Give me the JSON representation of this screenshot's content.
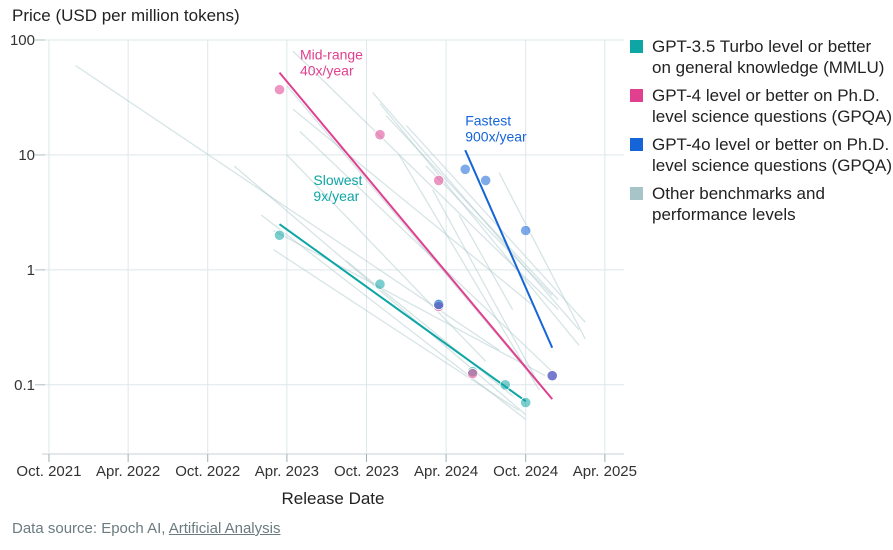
{
  "chart_data": {
    "type": "scatter",
    "title": "",
    "ylabel": "Price (USD per million tokens)",
    "xlabel": "Release Date",
    "y_scale": "log",
    "ylim": [
      0.025,
      100
    ],
    "xlim": [
      "2021-09-15",
      "2025-05-15"
    ],
    "grid": true,
    "y_ticks": [
      {
        "value": 100,
        "label": "100"
      },
      {
        "value": 10,
        "label": "10"
      },
      {
        "value": 1,
        "label": "1"
      },
      {
        "value": 0.1,
        "label": "0.1"
      }
    ],
    "x_ticks": [
      {
        "date": "2021-10-01",
        "label": "Oct. 2021"
      },
      {
        "date": "2022-04-01",
        "label": "Apr. 2022"
      },
      {
        "date": "2022-10-01",
        "label": "Oct. 2022"
      },
      {
        "date": "2023-04-01",
        "label": "Apr. 2023"
      },
      {
        "date": "2023-10-01",
        "label": "Oct. 2023"
      },
      {
        "date": "2024-04-01",
        "label": "Apr. 2024"
      },
      {
        "date": "2024-10-01",
        "label": "Oct. 2024"
      },
      {
        "date": "2025-04-01",
        "label": "Apr. 2025"
      }
    ],
    "legend_position": "right",
    "series": [
      {
        "name": "GPT-3.5 Turbo level or better on general knowledge (MMLU)",
        "color": "#0ea5a5",
        "points": [
          {
            "x": "2023-03-15",
            "y": 2.0
          },
          {
            "x": "2023-11-01",
            "y": 0.75
          },
          {
            "x": "2024-03-15",
            "y": 0.5
          },
          {
            "x": "2024-06-01",
            "y": 0.13
          },
          {
            "x": "2024-08-15",
            "y": 0.1
          },
          {
            "x": "2024-10-01",
            "y": 0.07
          }
        ],
        "trend": {
          "x": [
            "2023-03-15",
            "2024-10-01"
          ],
          "y": [
            2.5,
            0.072
          ]
        }
      },
      {
        "name": "GPT-4 level or better on Ph.D. level science questions (GPQA)",
        "color": "#e0408f",
        "points": [
          {
            "x": "2023-03-15",
            "y": 37
          },
          {
            "x": "2023-11-01",
            "y": 15
          },
          {
            "x": "2024-03-15",
            "y": 6
          },
          {
            "x": "2024-03-15",
            "y": 0.48
          },
          {
            "x": "2024-06-01",
            "y": 0.125
          },
          {
            "x": "2024-12-01",
            "y": 0.12
          }
        ],
        "trend": {
          "x": [
            "2023-03-15",
            "2024-12-01"
          ],
          "y": [
            52,
            0.075
          ]
        }
      },
      {
        "name": "GPT-4o level or better on Ph.D. level science questions (GPQA)",
        "color": "#1565d8",
        "points": [
          {
            "x": "2024-05-15",
            "y": 7.5
          },
          {
            "x": "2024-07-01",
            "y": 6
          },
          {
            "x": "2024-10-01",
            "y": 2.2
          },
          {
            "x": "2024-03-15",
            "y": 0.5
          },
          {
            "x": "2024-12-01",
            "y": 0.12
          }
        ],
        "trend": {
          "x": [
            "2024-05-15",
            "2024-12-01"
          ],
          "y": [
            11,
            0.21
          ]
        }
      },
      {
        "name": "Other benchmarks and performance levels",
        "color": "#a7c4c8"
      }
    ],
    "annotations": [
      {
        "text": [
          "Mid-range",
          "40x/year"
        ],
        "color": "#e0408f",
        "x": "2023-05-01",
        "y": 68
      },
      {
        "text": [
          "Fastest",
          "900x/year"
        ],
        "color": "#1565d8",
        "x": "2024-05-15",
        "y": 18
      },
      {
        "text": [
          "Slowest",
          "9x/year"
        ],
        "color": "#0ea5a5",
        "x": "2023-06-01",
        "y": 5.5
      }
    ]
  },
  "footer": {
    "prefix": "Data source: Epoch AI, ",
    "link": "Artificial Analysis"
  }
}
